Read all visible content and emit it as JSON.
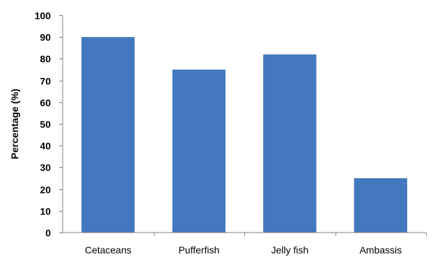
{
  "chart_data": {
    "type": "bar",
    "title": "",
    "xlabel": "",
    "ylabel": "Percentage (%)",
    "categories": [
      "Cetaceans",
      "Pufferfish",
      "Jelly fish",
      "Ambassis"
    ],
    "values": [
      90,
      75,
      82,
      25
    ],
    "ylim": [
      0,
      100
    ],
    "yticks": [
      0,
      10,
      20,
      30,
      40,
      50,
      60,
      70,
      80,
      90,
      100
    ],
    "grid": false,
    "legend": "none",
    "colors": {
      "bar": "#4478be",
      "axis": "#7f7f7f"
    }
  }
}
